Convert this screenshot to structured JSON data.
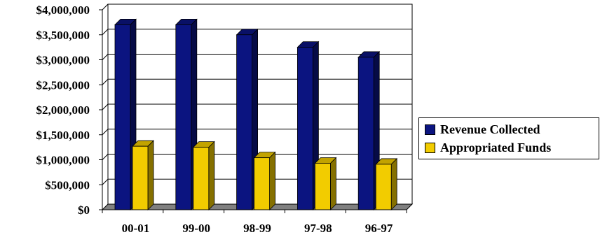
{
  "chart_data": {
    "type": "bar",
    "categories": [
      "00-01",
      "99-00",
      "98-99",
      "97-98",
      "96-97"
    ],
    "series": [
      {
        "name": "Revenue Collected",
        "values": [
          3700000,
          3700000,
          3500000,
          3250000,
          3050000
        ],
        "color": "#0b1480"
      },
      {
        "name": "Appropriated Funds",
        "values": [
          1270000,
          1250000,
          1040000,
          930000,
          910000
        ],
        "color": "#f2cc00"
      }
    ],
    "y_ticks": [
      "$4,000,000",
      "$3,500,000",
      "$3,000,000",
      "$2,500,000",
      "$2,000,000",
      "$1,500,000",
      "$1,000,000",
      "$500,000",
      "$0"
    ],
    "ylim": [
      0,
      4000000
    ],
    "grid": true,
    "style": "3d-column",
    "legend_position": "right"
  }
}
